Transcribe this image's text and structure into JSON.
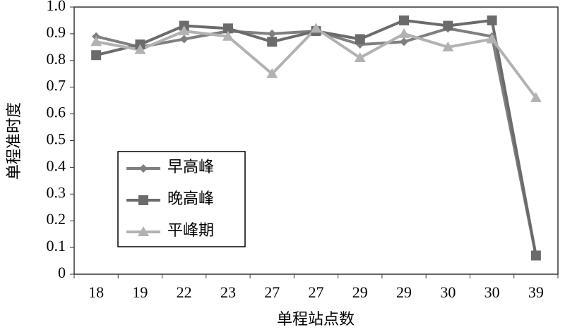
{
  "chart_data": {
    "type": "line",
    "x_label": "单程站点数",
    "y_label": "单程准时度",
    "categories": [
      "18",
      "19",
      "22",
      "23",
      "27",
      "27",
      "29",
      "29",
      "30",
      "30",
      "39"
    ],
    "series": [
      {
        "name": "早高峰",
        "color": "#7f7f7f",
        "marker": "diamond",
        "values": [
          0.89,
          0.85,
          0.88,
          0.91,
          0.9,
          0.91,
          0.86,
          0.87,
          0.92,
          0.89,
          0.07
        ]
      },
      {
        "name": "晚高峰",
        "color": "#6b6b6b",
        "marker": "square",
        "values": [
          0.82,
          0.86,
          0.93,
          0.92,
          0.87,
          0.91,
          0.88,
          0.95,
          0.93,
          0.95,
          0.07
        ]
      },
      {
        "name": "平峰期",
        "color": "#b2b2b2",
        "marker": "triangle",
        "values": [
          0.87,
          0.84,
          0.91,
          0.89,
          0.75,
          0.92,
          0.81,
          0.9,
          0.85,
          0.88,
          0.66
        ]
      }
    ],
    "ylim": [
      0,
      1
    ],
    "yticks": [
      0,
      0.1,
      0.2,
      0.3,
      0.4,
      0.5,
      0.6,
      0.7,
      0.8,
      0.9,
      {
        "value": 1,
        "label": "1.0"
      }
    ],
    "grid": false,
    "legend": "left"
  }
}
